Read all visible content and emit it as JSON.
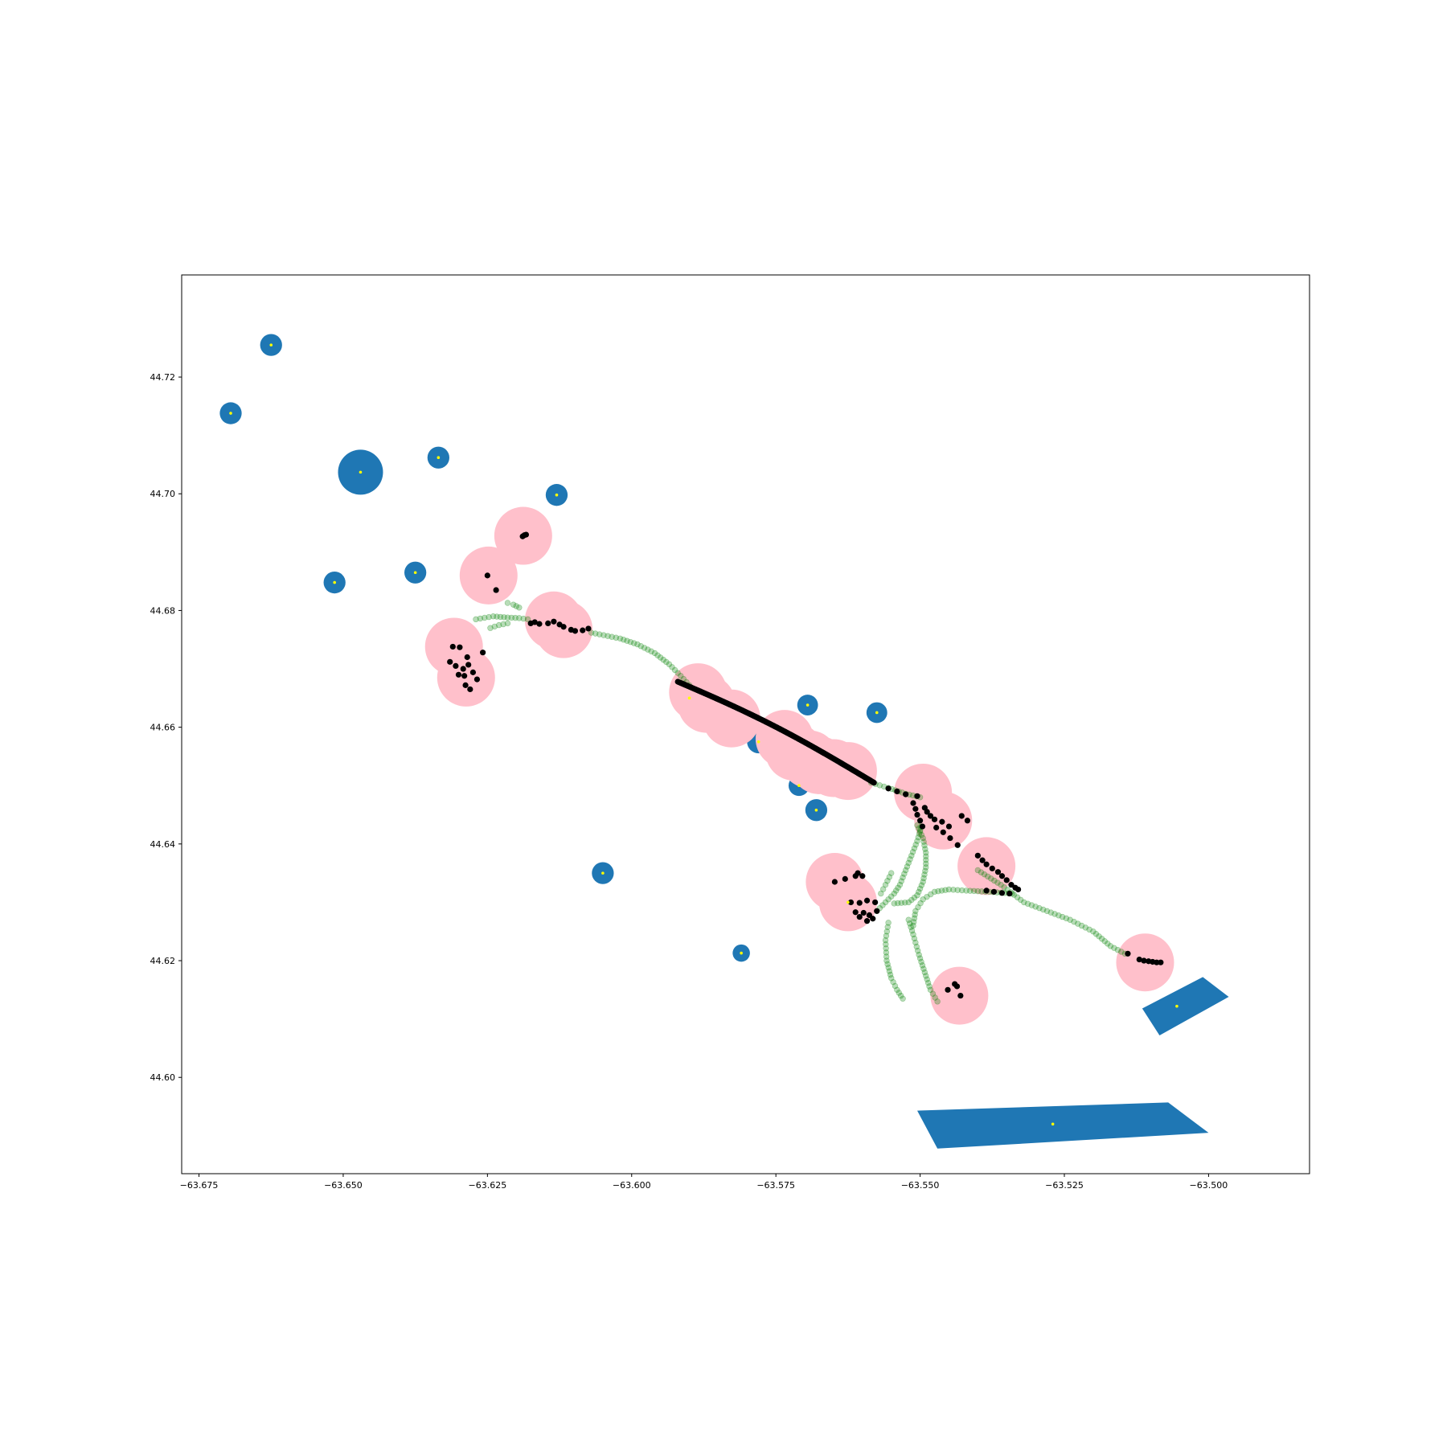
{
  "chart_data": {
    "type": "scatter",
    "title": "",
    "xlabel": "",
    "ylabel": "",
    "xlim": [
      -63.678,
      -63.4825
    ],
    "ylim": [
      44.5835,
      44.7375
    ],
    "x_ticks": [
      -63.675,
      -63.65,
      -63.625,
      -63.6,
      -63.575,
      -63.55,
      -63.525,
      -63.5
    ],
    "x_tick_labels": [
      "−63.675",
      "−63.650",
      "−63.625",
      "−63.600",
      "−63.575",
      "−63.550",
      "−63.525",
      "−63.500"
    ],
    "y_ticks": [
      44.6,
      44.62,
      44.64,
      44.66,
      44.68,
      44.7,
      44.72
    ],
    "y_tick_labels": [
      "44.60",
      "44.62",
      "44.64",
      "44.66",
      "44.68",
      "44.70",
      "44.72"
    ],
    "grid": false,
    "colors": {
      "polygon": "#1f77b4",
      "buffer": "#ffc0cb",
      "centroid": "#ffff00",
      "track": "#008000",
      "stop": "#000000"
    },
    "circle_polygons": [
      {
        "x": -63.6625,
        "y": 44.7255,
        "r": 0.0019
      },
      {
        "x": -63.6695,
        "y": 44.7138,
        "r": 0.0019
      },
      {
        "x": -63.647,
        "y": 44.7037,
        "r": 0.0039
      },
      {
        "x": -63.6335,
        "y": 44.7062,
        "r": 0.0019
      },
      {
        "x": -63.613,
        "y": 44.6998,
        "r": 0.0019
      },
      {
        "x": -63.6515,
        "y": 44.6848,
        "r": 0.0019
      },
      {
        "x": -63.6375,
        "y": 44.6865,
        "r": 0.0019
      },
      {
        "x": -63.5695,
        "y": 44.6638,
        "r": 0.0018
      },
      {
        "x": -63.5575,
        "y": 44.6625,
        "r": 0.0018
      },
      {
        "x": -63.571,
        "y": 44.65,
        "r": 0.0018
      },
      {
        "x": -63.568,
        "y": 44.6458,
        "r": 0.0019
      },
      {
        "x": -63.605,
        "y": 44.635,
        "r": 0.0019
      },
      {
        "x": -63.581,
        "y": 44.6213,
        "r": 0.0015
      },
      {
        "x": -63.5625,
        "y": 44.63,
        "r": 0.0045
      },
      {
        "x": -63.59,
        "y": 44.665,
        "r": 0.002
      },
      {
        "x": -63.578,
        "y": 44.6575,
        "r": 0.002
      }
    ],
    "shape_polygons": [
      {
        "points": [
          [
            -63.5115,
            44.6118
          ],
          [
            -63.501,
            44.6172
          ],
          [
            -63.4965,
            44.6138
          ],
          [
            -63.5085,
            44.6072
          ]
        ],
        "centroid": [
          -63.5055,
          44.6122
        ]
      },
      {
        "points": [
          [
            -63.5505,
            44.5943
          ],
          [
            -63.507,
            44.5957
          ],
          [
            -63.5,
            44.5905
          ],
          [
            -63.547,
            44.5878
          ]
        ],
        "centroid": [
          -63.527,
          44.592
        ]
      }
    ],
    "buffers": [
      {
        "x": -63.6188,
        "y": 44.6928
      },
      {
        "x": -63.6248,
        "y": 44.686
      },
      {
        "x": -63.6135,
        "y": 44.6783
      },
      {
        "x": -63.6118,
        "y": 44.6768
      },
      {
        "x": -63.6308,
        "y": 44.6738
      },
      {
        "x": -63.6287,
        "y": 44.6685
      },
      {
        "x": -63.5885,
        "y": 44.666
      },
      {
        "x": -63.587,
        "y": 44.664
      },
      {
        "x": -63.5827,
        "y": 44.6615
      },
      {
        "x": -63.5735,
        "y": 44.658
      },
      {
        "x": -63.5718,
        "y": 44.6558
      },
      {
        "x": -63.5692,
        "y": 44.6545
      },
      {
        "x": -63.5675,
        "y": 44.6535
      },
      {
        "x": -63.565,
        "y": 44.653
      },
      {
        "x": -63.5625,
        "y": 44.6525
      },
      {
        "x": -63.5495,
        "y": 44.6488
      },
      {
        "x": -63.546,
        "y": 44.644
      },
      {
        "x": -63.5385,
        "y": 44.6362
      },
      {
        "x": -63.5648,
        "y": 44.6335
      },
      {
        "x": -63.5625,
        "y": 44.63
      },
      {
        "x": -63.5432,
        "y": 44.614
      },
      {
        "x": -63.511,
        "y": 44.6197
      }
    ],
    "stops": [
      {
        "x": -63.6189,
        "y": 44.6927
      },
      {
        "x": -63.6186,
        "y": 44.6929
      },
      {
        "x": -63.6183,
        "y": 44.693
      },
      {
        "x": -63.625,
        "y": 44.686
      },
      {
        "x": -63.6235,
        "y": 44.6835
      },
      {
        "x": -63.6175,
        "y": 44.6778
      },
      {
        "x": -63.6168,
        "y": 44.678
      },
      {
        "x": -63.616,
        "y": 44.6777
      },
      {
        "x": -63.6145,
        "y": 44.6778
      },
      {
        "x": -63.6135,
        "y": 44.6781
      },
      {
        "x": -63.6125,
        "y": 44.6776
      },
      {
        "x": -63.6118,
        "y": 44.6772
      },
      {
        "x": -63.6105,
        "y": 44.6767
      },
      {
        "x": -63.6098,
        "y": 44.6765
      },
      {
        "x": -63.6085,
        "y": 44.6766
      },
      {
        "x": -63.6075,
        "y": 44.6769
      },
      {
        "x": -63.631,
        "y": 44.6738
      },
      {
        "x": -63.6298,
        "y": 44.6737
      },
      {
        "x": -63.6315,
        "y": 44.6712
      },
      {
        "x": -63.6305,
        "y": 44.6705
      },
      {
        "x": -63.6292,
        "y": 44.67
      },
      {
        "x": -63.6283,
        "y": 44.6707
      },
      {
        "x": -63.6275,
        "y": 44.6694
      },
      {
        "x": -63.6268,
        "y": 44.6682
      },
      {
        "x": -63.6288,
        "y": 44.6672
      },
      {
        "x": -63.628,
        "y": 44.6665
      },
      {
        "x": -63.629,
        "y": 44.6688
      },
      {
        "x": -63.63,
        "y": 44.669
      },
      {
        "x": -63.6258,
        "y": 44.6728
      },
      {
        "x": -63.6285,
        "y": 44.672
      },
      {
        "x": -63.5555,
        "y": 44.6495
      },
      {
        "x": -63.554,
        "y": 44.649
      },
      {
        "x": -63.5525,
        "y": 44.6485
      },
      {
        "x": -63.5505,
        "y": 44.6482
      },
      {
        "x": -63.5512,
        "y": 44.647
      },
      {
        "x": -63.5508,
        "y": 44.646
      },
      {
        "x": -63.5505,
        "y": 44.645
      },
      {
        "x": -63.55,
        "y": 44.644
      },
      {
        "x": -63.5496,
        "y": 44.643
      },
      {
        "x": -63.5492,
        "y": 44.6462
      },
      {
        "x": -63.5488,
        "y": 44.6455
      },
      {
        "x": -63.5482,
        "y": 44.6448
      },
      {
        "x": -63.5475,
        "y": 44.6442
      },
      {
        "x": -63.5462,
        "y": 44.6438
      },
      {
        "x": -63.545,
        "y": 44.643
      },
      {
        "x": -63.5472,
        "y": 44.6428
      },
      {
        "x": -63.546,
        "y": 44.642
      },
      {
        "x": -63.5448,
        "y": 44.641
      },
      {
        "x": -63.5435,
        "y": 44.6398
      },
      {
        "x": -63.5428,
        "y": 44.6448
      },
      {
        "x": -63.5418,
        "y": 44.644
      },
      {
        "x": -63.54,
        "y": 44.638
      },
      {
        "x": -63.5392,
        "y": 44.6372
      },
      {
        "x": -63.5385,
        "y": 44.6365
      },
      {
        "x": -63.5375,
        "y": 44.6358
      },
      {
        "x": -63.5365,
        "y": 44.6352
      },
      {
        "x": -63.5358,
        "y": 44.6345
      },
      {
        "x": -63.535,
        "y": 44.6338
      },
      {
        "x": -63.5342,
        "y": 44.633
      },
      {
        "x": -63.5335,
        "y": 44.6325
      },
      {
        "x": -63.5385,
        "y": 44.632
      },
      {
        "x": -63.5372,
        "y": 44.6318
      },
      {
        "x": -63.5358,
        "y": 44.6316
      },
      {
        "x": -63.5345,
        "y": 44.6315
      },
      {
        "x": -63.533,
        "y": 44.6322
      },
      {
        "x": -63.5648,
        "y": 44.6335
      },
      {
        "x": -63.563,
        "y": 44.634
      },
      {
        "x": -63.5612,
        "y": 44.6345
      },
      {
        "x": -63.5608,
        "y": 44.635
      },
      {
        "x": -63.56,
        "y": 44.6345
      },
      {
        "x": -63.562,
        "y": 44.63
      },
      {
        "x": -63.5605,
        "y": 44.6299
      },
      {
        "x": -63.5592,
        "y": 44.6303
      },
      {
        "x": -63.5578,
        "y": 44.63
      },
      {
        "x": -63.5575,
        "y": 44.6285
      },
      {
        "x": -63.5582,
        "y": 44.6272
      },
      {
        "x": -63.5592,
        "y": 44.6268
      },
      {
        "x": -63.5605,
        "y": 44.6275
      },
      {
        "x": -63.5612,
        "y": 44.6283
      },
      {
        "x": -63.5598,
        "y": 44.6282
      },
      {
        "x": -63.5588,
        "y": 44.6278
      },
      {
        "x": -63.5452,
        "y": 44.615
      },
      {
        "x": -63.544,
        "y": 44.616
      },
      {
        "x": -63.5436,
        "y": 44.6156
      },
      {
        "x": -63.543,
        "y": 44.614
      },
      {
        "x": -63.514,
        "y": 44.6212
      },
      {
        "x": -63.512,
        "y": 44.6202
      },
      {
        "x": -63.5112,
        "y": 44.62
      },
      {
        "x": -63.5104,
        "y": 44.6199
      },
      {
        "x": -63.5097,
        "y": 44.6198
      },
      {
        "x": -63.509,
        "y": 44.6197
      },
      {
        "x": -63.5083,
        "y": 44.6197
      }
    ],
    "corridor_stops": {
      "from": [
        -63.592,
        44.6678
      ],
      "to": [
        -63.558,
        44.6505
      ],
      "count": 190
    },
    "tracks": [
      {
        "points": [
          [
            -63.627,
            44.6785
          ],
          [
            -63.624,
            44.679
          ],
          [
            -63.6215,
            44.6788
          ],
          [
            -63.6195,
            44.6787
          ],
          [
            -63.618,
            44.6785
          ]
        ]
      },
      {
        "points": [
          [
            -63.6215,
            44.6813
          ],
          [
            -63.6205,
            44.681
          ],
          [
            -63.6195,
            44.6805
          ]
        ]
      },
      {
        "points": [
          [
            -63.6245,
            44.677
          ],
          [
            -63.623,
            44.6775
          ],
          [
            -63.6215,
            44.6778
          ]
        ]
      },
      {
        "points": [
          [
            -63.607,
            44.6762
          ],
          [
            -63.602,
            44.6752
          ],
          [
            -63.599,
            44.6742
          ],
          [
            -63.596,
            44.6727
          ],
          [
            -63.5935,
            44.6708
          ],
          [
            -63.5915,
            44.6688
          ],
          [
            -63.59,
            44.6672
          ]
        ]
      },
      {
        "points": [
          [
            -63.5585,
            44.6505
          ],
          [
            -63.5555,
            44.6496
          ],
          [
            -63.5525,
            44.6486
          ],
          [
            -63.55,
            44.648
          ]
        ]
      },
      {
        "points": [
          [
            -63.54,
            44.6355
          ],
          [
            -63.536,
            44.633
          ],
          [
            -63.532,
            44.63
          ],
          [
            -63.528,
            44.6285
          ],
          [
            -63.524,
            44.627
          ],
          [
            -63.52,
            44.625
          ],
          [
            -63.517,
            44.6225
          ],
          [
            -63.5145,
            44.6212
          ]
        ]
      },
      {
        "points": [
          [
            -63.534,
            44.6315
          ],
          [
            -63.538,
            44.6318
          ],
          [
            -63.542,
            44.632
          ],
          [
            -63.545,
            44.6322
          ],
          [
            -63.5475,
            44.6318
          ],
          [
            -63.5495,
            44.6305
          ],
          [
            -63.5508,
            44.6285
          ],
          [
            -63.5512,
            44.626
          ]
        ]
      },
      {
        "points": [
          [
            -63.5555,
            44.6265
          ],
          [
            -63.556,
            44.6235
          ],
          [
            -63.5558,
            44.62
          ],
          [
            -63.555,
            44.617
          ],
          [
            -63.554,
            44.615
          ],
          [
            -63.553,
            44.6135
          ]
        ]
      },
      {
        "points": [
          [
            -63.5498,
            44.643
          ],
          [
            -63.5505,
            44.6405
          ],
          [
            -63.5515,
            44.638
          ],
          [
            -63.5525,
            44.6355
          ],
          [
            -63.5535,
            44.633
          ],
          [
            -63.5545,
            44.6315
          ],
          [
            -63.556,
            44.63
          ],
          [
            -63.5575,
            44.6285
          ]
        ]
      },
      {
        "points": [
          [
            -63.5505,
            44.6432
          ],
          [
            -63.5495,
            44.641
          ],
          [
            -63.549,
            44.6385
          ],
          [
            -63.549,
            44.636
          ],
          [
            -63.5495,
            44.6335
          ],
          [
            -63.5505,
            44.6312
          ],
          [
            -63.552,
            44.63
          ],
          [
            -63.5545,
            44.6298
          ]
        ]
      },
      {
        "points": [
          [
            -63.552,
            44.627
          ],
          [
            -63.5512,
            44.6245
          ],
          [
            -63.5502,
            44.621
          ],
          [
            -63.5492,
            44.618
          ],
          [
            -63.5482,
            44.615
          ],
          [
            -63.547,
            44.613
          ]
        ]
      },
      {
        "points": [
          [
            -63.555,
            44.635
          ],
          [
            -63.556,
            44.633
          ],
          [
            -63.5568,
            44.6315
          ]
        ]
      }
    ]
  }
}
